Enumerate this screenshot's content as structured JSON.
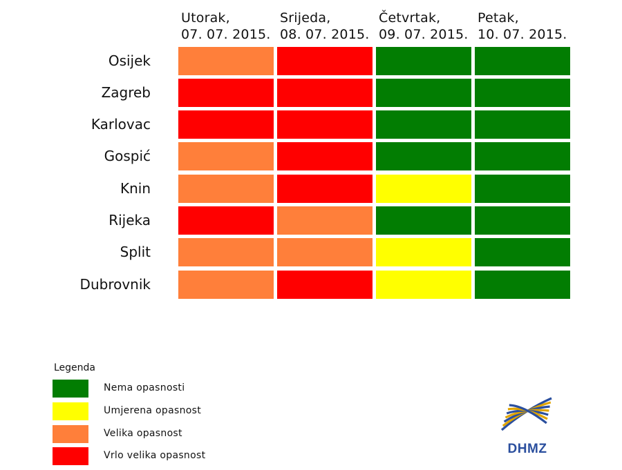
{
  "chart_data": {
    "type": "heatmap",
    "columns": [
      {
        "day": "Utorak,",
        "date": "07. 07. 2015."
      },
      {
        "day": "Srijeda,",
        "date": "08. 07. 2015."
      },
      {
        "day": "Četvrtak,",
        "date": "09. 07. 2015."
      },
      {
        "day": "Petak,",
        "date": "10. 07. 2015."
      }
    ],
    "rows": [
      "Osijek",
      "Zagreb",
      "Karlovac",
      "Gospić",
      "Knin",
      "Rijeka",
      "Split",
      "Dubrovnik"
    ],
    "levels": [
      {
        "key": "none",
        "label": "Nema opasnosti",
        "color": "#027d02"
      },
      {
        "key": "moderate",
        "label": "Umjerena opasnost",
        "color": "#ffff00"
      },
      {
        "key": "high",
        "label": "Velika opasnost",
        "color": "#ff7f3a"
      },
      {
        "key": "very_high",
        "label": "Vrlo velika opasnost",
        "color": "#ff0000"
      }
    ],
    "values": [
      [
        "high",
        "very_high",
        "none",
        "none"
      ],
      [
        "very_high",
        "very_high",
        "none",
        "none"
      ],
      [
        "very_high",
        "very_high",
        "none",
        "none"
      ],
      [
        "high",
        "very_high",
        "none",
        "none"
      ],
      [
        "high",
        "very_high",
        "moderate",
        "none"
      ],
      [
        "very_high",
        "high",
        "none",
        "none"
      ],
      [
        "high",
        "high",
        "moderate",
        "none"
      ],
      [
        "high",
        "very_high",
        "moderate",
        "none"
      ]
    ],
    "legend_title": "Legenda"
  },
  "logo": {
    "text": "DHMZ",
    "color": "#2b4f9e",
    "accent": "#e0a400"
  }
}
